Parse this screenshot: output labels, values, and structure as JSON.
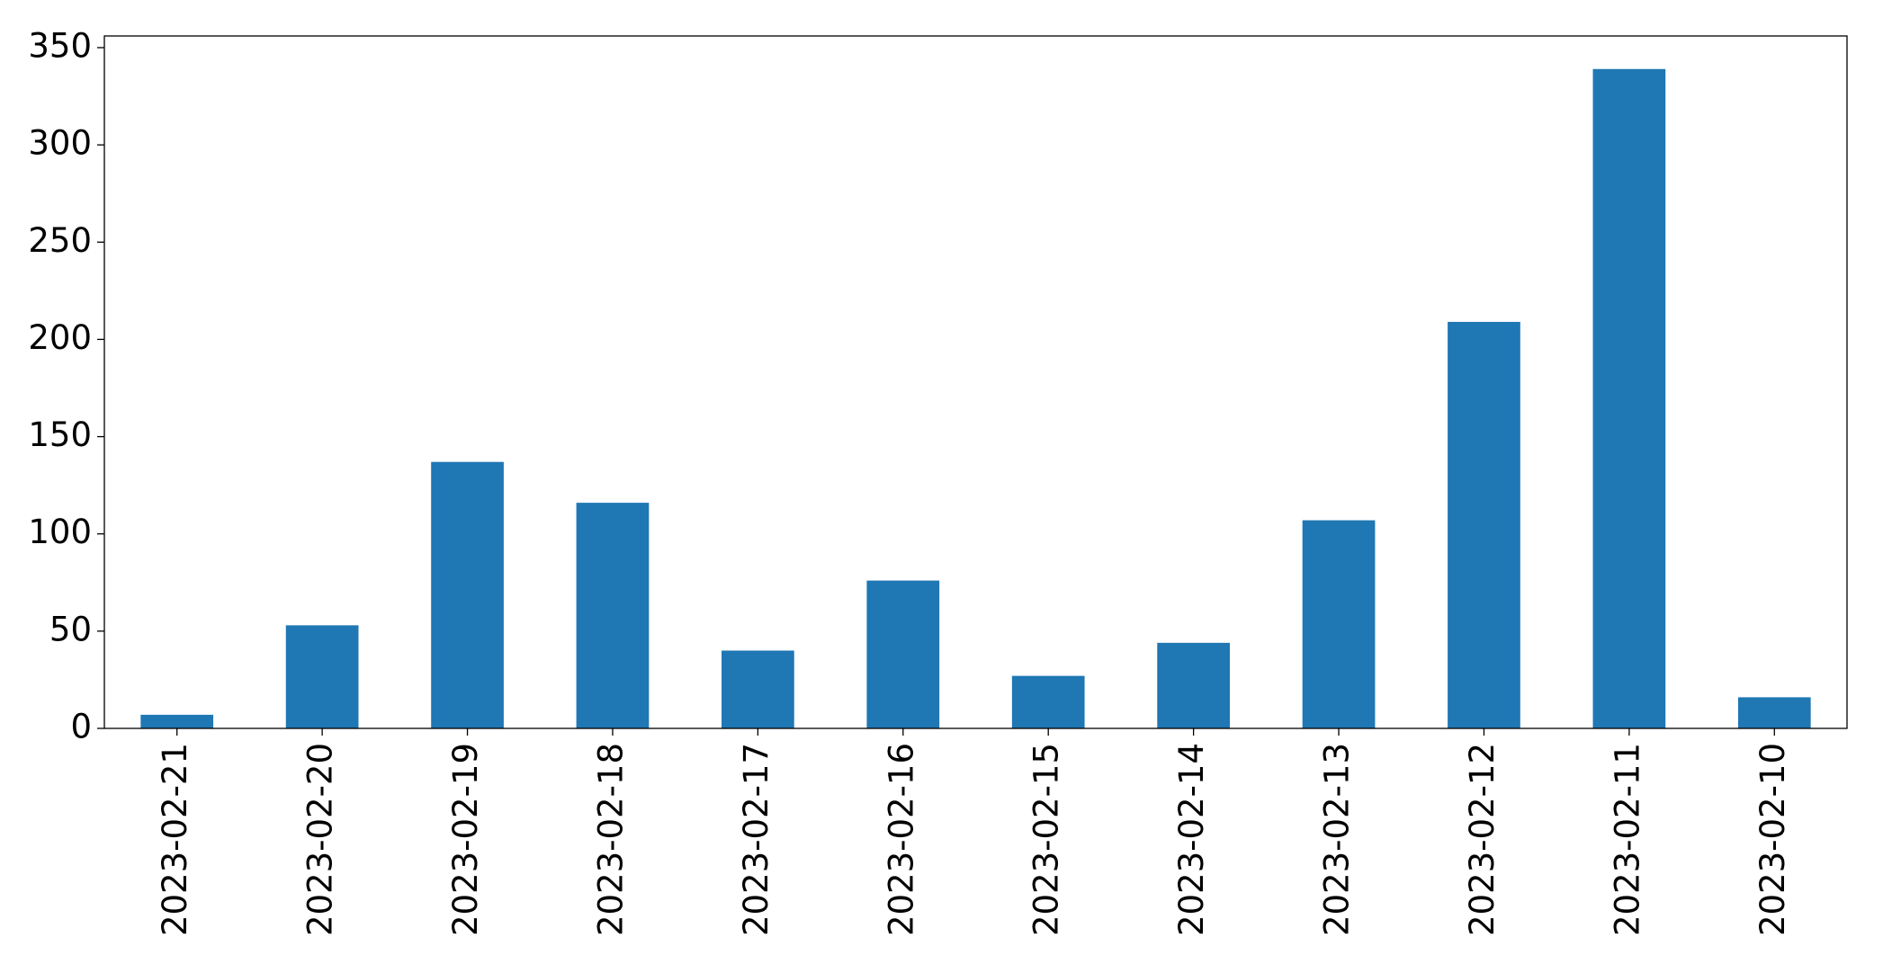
{
  "chart_data": {
    "type": "bar",
    "categories": [
      "2023-02-21",
      "2023-02-20",
      "2023-02-19",
      "2023-02-18",
      "2023-02-17",
      "2023-02-16",
      "2023-02-15",
      "2023-02-14",
      "2023-02-13",
      "2023-02-12",
      "2023-02-11",
      "2023-02-10"
    ],
    "values": [
      7,
      53,
      137,
      116,
      40,
      76,
      27,
      44,
      107,
      209,
      339,
      16
    ],
    "color": "#1f77b4",
    "ylim": [
      0,
      356
    ],
    "yticks": [
      0,
      50,
      100,
      150,
      200,
      250,
      300,
      350
    ],
    "grid": false
  }
}
